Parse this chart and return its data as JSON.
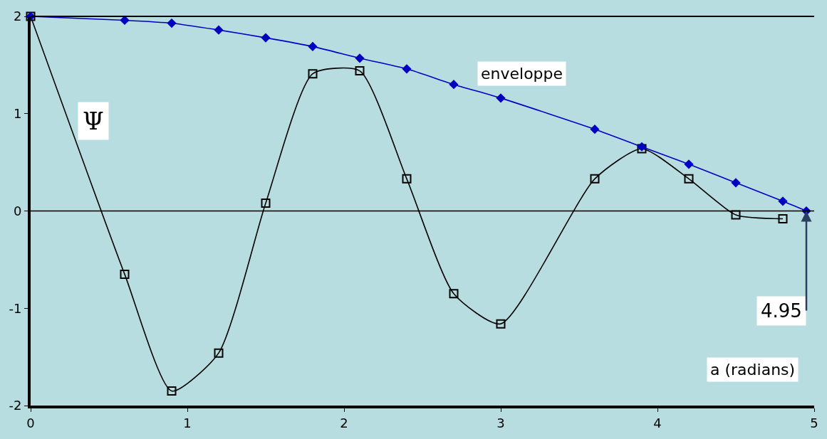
{
  "chart_data": {
    "type": "line",
    "xlabel": "a (radians)",
    "ylabel": "Ψ",
    "xlim": [
      0,
      5
    ],
    "ylim": [
      -2,
      2
    ],
    "xticks": [
      0,
      1,
      2,
      3,
      4,
      5
    ],
    "yticks": [
      -2,
      -1,
      0,
      1,
      2
    ],
    "grid": false,
    "line_style": "solid",
    "series": [
      {
        "color": "#000000",
        "marker": "square",
        "x": [
          0,
          0.6,
          0.9,
          1.2,
          1.5,
          1.8,
          2.1,
          2.4,
          2.7,
          3.0,
          3.6,
          3.9,
          4.2,
          4.5,
          4.8
        ],
        "values": [
          2,
          -0.65,
          -1.85,
          -1.46,
          0.08,
          1.41,
          1.44,
          0.33,
          -0.85,
          -1.16,
          0.33,
          0.64,
          0.33,
          -0.04,
          -0.08
        ]
      },
      {
        "color": "#0000c0",
        "marker": "diamond",
        "x": [
          0,
          0.6,
          0.9,
          1.2,
          1.5,
          1.8,
          2.1,
          2.4,
          2.7,
          3.0,
          3.6,
          3.9,
          4.2,
          4.5,
          4.8,
          4.95
        ],
        "values": [
          2,
          1.96,
          1.93,
          1.86,
          1.78,
          1.69,
          1.57,
          1.46,
          1.3,
          1.16,
          0.84,
          0.66,
          0.48,
          0.29,
          0.1,
          0
        ]
      }
    ],
    "ref_lines": [
      {
        "axis": "y",
        "value": 0,
        "color": "#000000"
      }
    ],
    "annotations": [
      "enveloppe",
      {
        "text": "4.95",
        "x": 4.95,
        "y": 0
      }
    ]
  }
}
